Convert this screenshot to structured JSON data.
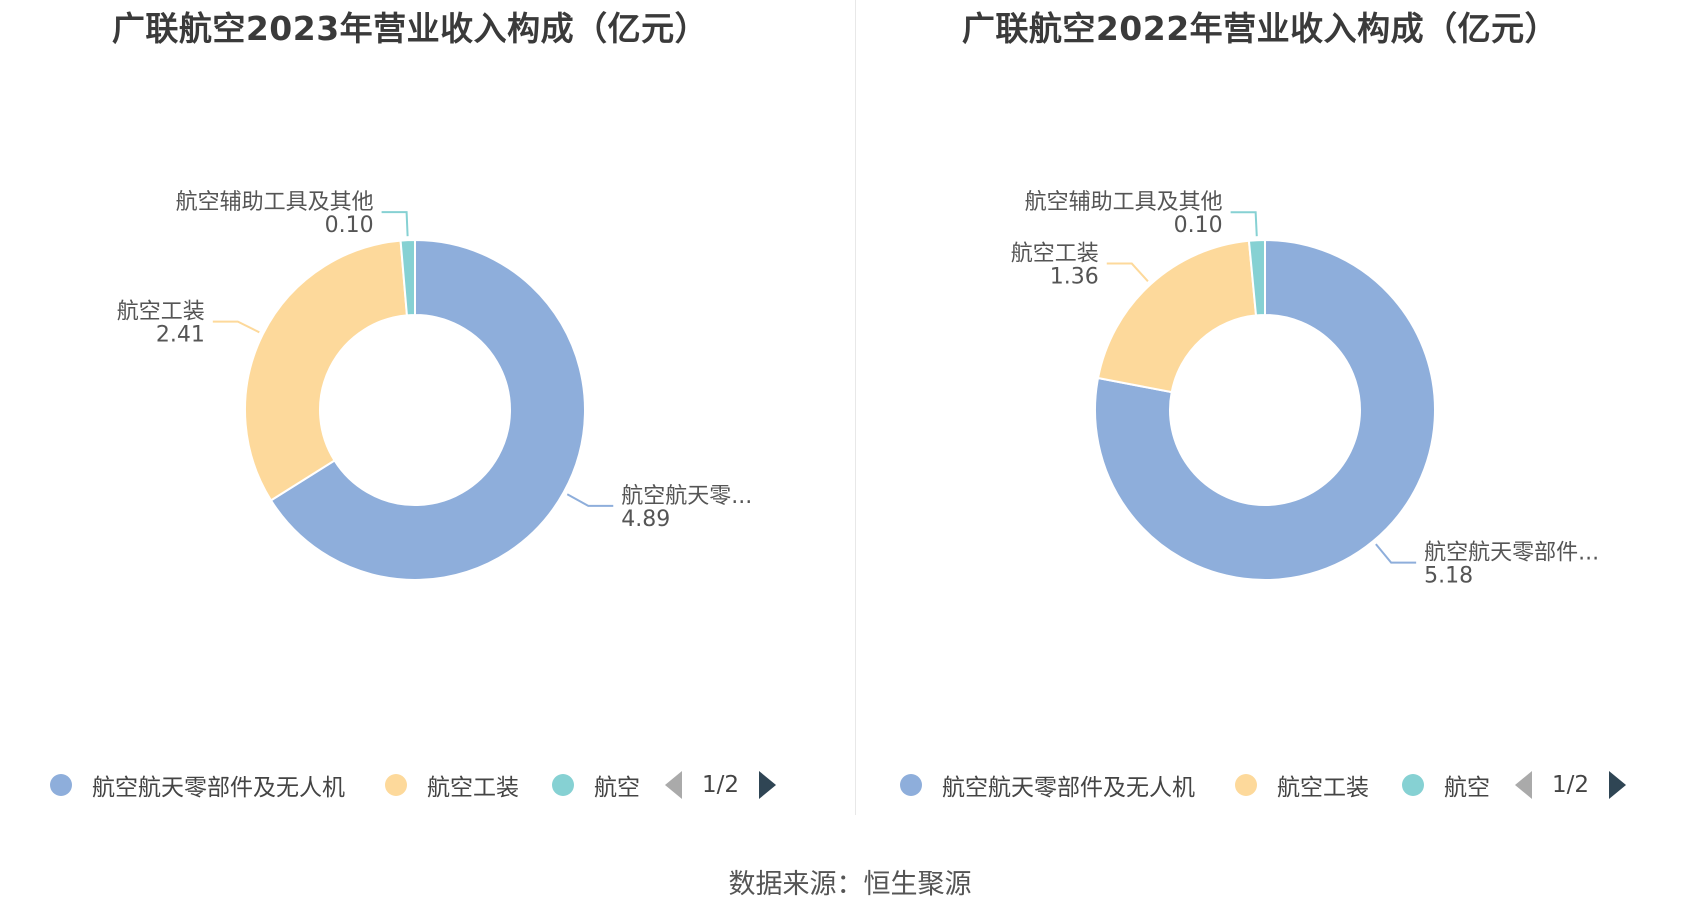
{
  "chart_data": [
    {
      "type": "pie",
      "title": "广联航空2023年营业收入构成（亿元）",
      "slices": [
        {
          "name": "航空航天零部件及无人机",
          "label": "航空航天零...",
          "value": 4.89,
          "value_label": "4.89",
          "color": "#8eaedb"
        },
        {
          "name": "航空工装",
          "label": "航空工装",
          "value": 2.41,
          "value_label": "2.41",
          "color": "#fdd99b"
        },
        {
          "name": "航空辅助工具及其他",
          "label": "航空辅助工具及其他",
          "value": 0.1,
          "value_label": "0.10",
          "color": "#86d1d3"
        }
      ],
      "legend": {
        "items": [
          "航空航天零部件及无人机",
          "航空工装",
          "航空"
        ],
        "page": "1/2",
        "placement": "bottom"
      }
    },
    {
      "type": "pie",
      "title": "广联航空2022年营业收入构成（亿元）",
      "slices": [
        {
          "name": "航空航天零部件及无人机",
          "label": "航空航天零部件...",
          "value": 5.18,
          "value_label": "5.18",
          "color": "#8eaedb"
        },
        {
          "name": "航空工装",
          "label": "航空工装",
          "value": 1.36,
          "value_label": "1.36",
          "color": "#fdd99b"
        },
        {
          "name": "航空辅助工具及其他",
          "label": "航空辅助工具及其他",
          "value": 0.1,
          "value_label": "0.10",
          "color": "#86d1d3"
        }
      ],
      "legend": {
        "items": [
          "航空航天零部件及无人机",
          "航空工装",
          "航空"
        ],
        "page": "1/2",
        "placement": "bottom"
      }
    }
  ],
  "source": "数据来源：恒生聚源"
}
